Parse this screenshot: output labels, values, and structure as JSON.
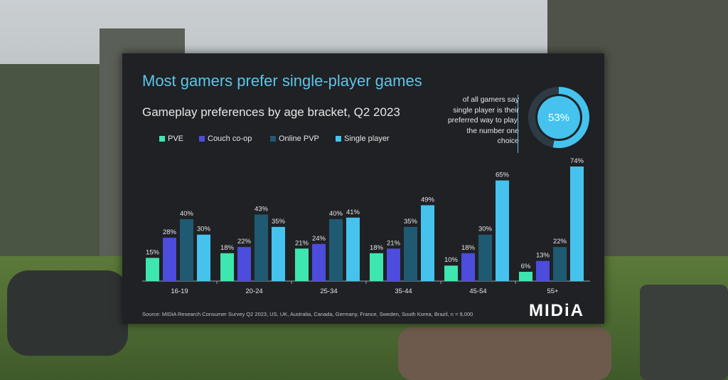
{
  "colors": {
    "pve": "#3ee6b0",
    "couch_coop": "#4c4cdd",
    "online_pvp": "#1f5a72",
    "single_player": "#45c3ee",
    "title": "#5bc6e8",
    "slide_bg": "#1f2125"
  },
  "slide": {
    "title": "Most gamers prefer single-player games",
    "subtitle": "Gameplay preferences by age bracket, Q2 2023",
    "source": "Source: MIDiA Research Consumer Survey Q2 2023, US, UK, Australia, Canada, Germany, France, Sweden, South Korea, Brazil, n = 9,000",
    "logo": "MIDiA"
  },
  "callout": {
    "lines": [
      "of all gamers say",
      "single player is their",
      "preferred way to play,",
      "the number one",
      "choice"
    ],
    "value_label": "53%",
    "value": 53
  },
  "chart_data": {
    "type": "bar",
    "title": "Gameplay preferences by age bracket, Q2 2023",
    "xlabel": "",
    "ylabel": "",
    "ylim": [
      0,
      74
    ],
    "grid": false,
    "legend_position": "top-left",
    "categories": [
      "16-19",
      "20-24",
      "25-34",
      "35-44",
      "45-54",
      "55+"
    ],
    "series": [
      {
        "name": "PVE",
        "values": [
          15,
          18,
          21,
          18,
          10,
          6
        ],
        "labels": [
          "15%",
          "18%",
          "21%",
          "18%",
          "10%",
          "6%"
        ]
      },
      {
        "name": "Couch co-op",
        "values": [
          28,
          22,
          24,
          21,
          18,
          13
        ],
        "labels": [
          "28%",
          "22%",
          "24%",
          "21%",
          "18%",
          "13%"
        ]
      },
      {
        "name": "Online PVP",
        "values": [
          40,
          43,
          40,
          35,
          30,
          22
        ],
        "labels": [
          "40%",
          "43%",
          "40%",
          "35%",
          "30%",
          "22%"
        ]
      },
      {
        "name": "Single player",
        "values": [
          30,
          35,
          41,
          49,
          65,
          74
        ],
        "labels": [
          "30%",
          "35%",
          "41%",
          "49%",
          "65%",
          "74%"
        ]
      }
    ]
  }
}
